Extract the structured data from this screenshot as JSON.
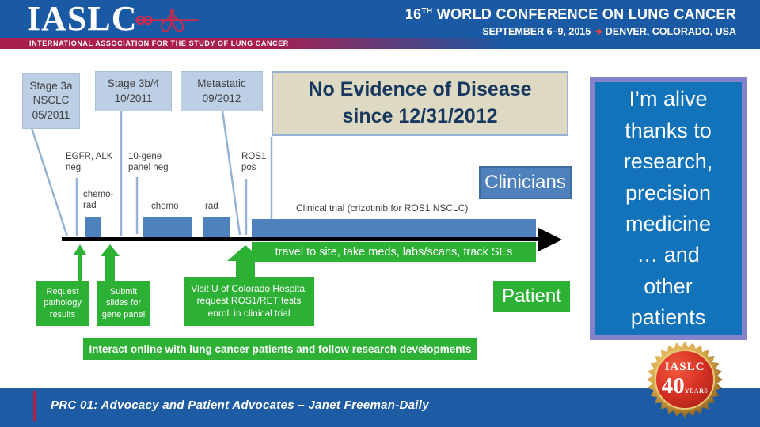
{
  "header": {
    "logo": "IASLC",
    "association": "INTERNATIONAL ASSOCIATION FOR THE STUDY OF LUNG CANCER",
    "conference": {
      "number": "16",
      "ordinal": "TH",
      "title_rest": " WORLD CONFERENCE ON LUNG CANCER",
      "dates": "SEPTEMBER 6–9, 2015",
      "arrow": "➔",
      "location": "DENVER, COLORADO, USA"
    }
  },
  "diagram": {
    "stage_boxes": [
      {
        "text": "Stage 3a\nNSCLC\n05/2011"
      },
      {
        "text": "Stage 3b/4\n10/2011"
      },
      {
        "text": "Metastatic\n09/2012"
      }
    ],
    "ned_box": {
      "text": "No Evidence of Disease\nsince 12/31/2012"
    },
    "test_labels": [
      {
        "text": "EGFR, ALK\nneg"
      },
      {
        "text": "10-gene\npanel neg"
      },
      {
        "text": "ROS1\npos"
      }
    ],
    "bar_labels": [
      {
        "text": "chemo-\nrad"
      },
      {
        "text": "chemo"
      },
      {
        "text": "rad"
      },
      {
        "text": "Clinical trial (crizotinib for ROS1 NSCLC)"
      }
    ],
    "clinicians_label": "Clinicians",
    "patient_label": "Patient",
    "travel_bar": "travel to site, take meds, labs/scans, track SEs",
    "action_boxes": [
      {
        "text": "Request\npathology\nresults"
      },
      {
        "text": "Submit\nslides for\ngene panel"
      },
      {
        "text": "Visit U of Colorado Hospital\nrequest ROS1/RET tests\nenroll in clinical trial"
      }
    ],
    "interact_bar": "Interact online with lung cancer patients and follow research developments"
  },
  "quote": {
    "text": "I’m alive\nthanks to\nresearch,\nprecision\nmedicine\n… and\nother\npatients"
  },
  "footer": {
    "text": "PRC 01: Advocacy and Patient Advocates – Janet Freeman-Daily"
  },
  "badge": {
    "org": "IASLC",
    "number": "40",
    "unit": "YEARS"
  },
  "colors": {
    "header_blue": "#1a59a4",
    "band_red": "#a91e4e",
    "accent_blue": "#4f81bd",
    "light_blue": "#bdcfe5",
    "green": "#2db135",
    "ned_tan": "#ddd9c3",
    "quote_blue": "#1273bb",
    "quote_border": "#8583cb",
    "footer_blue": "#1d5ba4"
  }
}
